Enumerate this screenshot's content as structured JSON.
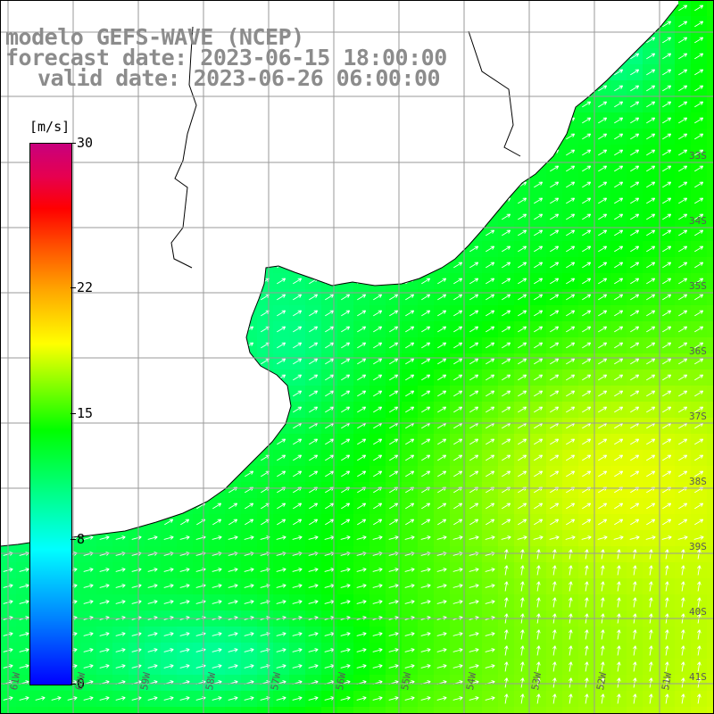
{
  "title": {
    "line1": "modelo GEFS-WAVE (NCEP)",
    "line2": "forecast date: 2023-06-15 18:00:00",
    "line3": "valid date: 2023-06-26 06:00:00"
  },
  "colorbar": {
    "unit": "[m/s]",
    "min": 0,
    "max": 30,
    "ticks": [
      {
        "label": "30",
        "value": 30
      },
      {
        "label": "22",
        "value": 22
      },
      {
        "label": "15",
        "value": 15
      },
      {
        "label": "8",
        "value": 8
      },
      {
        "label": "0",
        "value": 0
      }
    ]
  },
  "map": {
    "lat_labels": [
      "33S",
      "34S",
      "35S",
      "36S",
      "37S",
      "38S",
      "39S",
      "40S",
      "41S"
    ],
    "lon_labels": [
      "61W",
      "60W",
      "59W",
      "58W",
      "57W",
      "56W",
      "55W",
      "54W",
      "53W",
      "52W",
      "51W"
    ],
    "land_color": "#ffffff",
    "grid_color": "#9a9a9a",
    "coast_color": "#000000"
  }
}
